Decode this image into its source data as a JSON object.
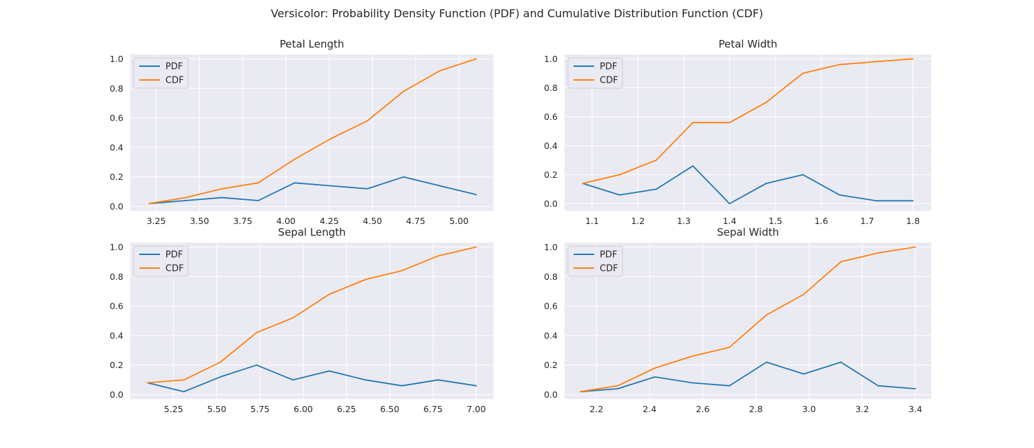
{
  "suptitle": "Versicolor: Probability Density Function (PDF) and Cumulative Distribution Function (CDF)",
  "colors": {
    "pdf": "#1f77b4",
    "cdf": "#ff7f0e",
    "axes_bg": "#eaeaf2",
    "grid": "#ffffff"
  },
  "legend_labels": [
    "PDF",
    "CDF"
  ],
  "chart_data": [
    {
      "type": "line",
      "title": "Petal Length",
      "legend": "top-left",
      "grid": true,
      "xlim": [
        3.1,
        5.2
      ],
      "ylim": [
        -0.03,
        1.03
      ],
      "xticks": [
        "3.25",
        "3.50",
        "3.75",
        "4.00",
        "4.25",
        "4.50",
        "4.75",
        "5.00"
      ],
      "yticks": [
        "0.0",
        "0.2",
        "0.4",
        "0.6",
        "0.8",
        "1.0"
      ],
      "x": [
        3.21,
        3.42,
        3.63,
        3.84,
        4.05,
        4.26,
        4.47,
        4.68,
        4.89,
        5.1
      ],
      "series": [
        {
          "name": "PDF",
          "values": [
            0.02,
            0.04,
            0.06,
            0.04,
            0.16,
            0.14,
            0.12,
            0.2,
            0.14,
            0.08
          ]
        },
        {
          "name": "CDF",
          "values": [
            0.02,
            0.06,
            0.12,
            0.16,
            0.32,
            0.46,
            0.58,
            0.78,
            0.92,
            1.0
          ]
        }
      ]
    },
    {
      "type": "line",
      "title": "Petal Width",
      "legend": "top-left",
      "grid": true,
      "xlim": [
        1.04,
        1.84
      ],
      "ylim": [
        -0.05,
        1.03
      ],
      "xticks": [
        "1.1",
        "1.2",
        "1.3",
        "1.4",
        "1.5",
        "1.6",
        "1.7",
        "1.8"
      ],
      "yticks": [
        "0.0",
        "0.2",
        "0.4",
        "0.6",
        "0.8",
        "1.0"
      ],
      "x": [
        1.08,
        1.16,
        1.24,
        1.32,
        1.4,
        1.48,
        1.56,
        1.64,
        1.72,
        1.8
      ],
      "series": [
        {
          "name": "PDF",
          "values": [
            0.14,
            0.06,
            0.1,
            0.26,
            0.0,
            0.14,
            0.2,
            0.06,
            0.02,
            0.02
          ]
        },
        {
          "name": "CDF",
          "values": [
            0.14,
            0.2,
            0.3,
            0.56,
            0.56,
            0.7,
            0.9,
            0.96,
            0.98,
            1.0
          ]
        }
      ]
    },
    {
      "type": "line",
      "title": "Sepal Length",
      "legend": "top-left",
      "grid": true,
      "xlim": [
        5.0,
        7.1
      ],
      "ylim": [
        -0.03,
        1.03
      ],
      "xticks": [
        "5.25",
        "5.50",
        "5.75",
        "6.00",
        "6.25",
        "6.50",
        "6.75",
        "7.00"
      ],
      "yticks": [
        "0.0",
        "0.2",
        "0.4",
        "0.6",
        "0.8",
        "1.0"
      ],
      "x": [
        5.1,
        5.31,
        5.52,
        5.73,
        5.94,
        6.15,
        6.36,
        6.57,
        6.78,
        7.0
      ],
      "series": [
        {
          "name": "PDF",
          "values": [
            0.08,
            0.02,
            0.12,
            0.2,
            0.1,
            0.16,
            0.1,
            0.06,
            0.1,
            0.06
          ]
        },
        {
          "name": "CDF",
          "values": [
            0.08,
            0.1,
            0.22,
            0.42,
            0.52,
            0.68,
            0.78,
            0.84,
            0.94,
            1.0
          ]
        }
      ]
    },
    {
      "type": "line",
      "title": "Sepal Width",
      "legend": "top-left",
      "grid": true,
      "xlim": [
        2.08,
        3.46
      ],
      "ylim": [
        -0.03,
        1.03
      ],
      "xticks": [
        "2.2",
        "2.4",
        "2.6",
        "2.8",
        "3.0",
        "3.2",
        "3.4"
      ],
      "yticks": [
        "0.0",
        "0.2",
        "0.4",
        "0.6",
        "0.8",
        "1.0"
      ],
      "x": [
        2.14,
        2.28,
        2.42,
        2.56,
        2.7,
        2.84,
        2.98,
        3.12,
        3.26,
        3.4
      ],
      "series": [
        {
          "name": "PDF",
          "values": [
            0.02,
            0.04,
            0.12,
            0.08,
            0.06,
            0.22,
            0.14,
            0.22,
            0.06,
            0.04
          ]
        },
        {
          "name": "CDF",
          "values": [
            0.02,
            0.06,
            0.18,
            0.26,
            0.32,
            0.54,
            0.68,
            0.9,
            0.96,
            1.0
          ]
        }
      ]
    }
  ]
}
